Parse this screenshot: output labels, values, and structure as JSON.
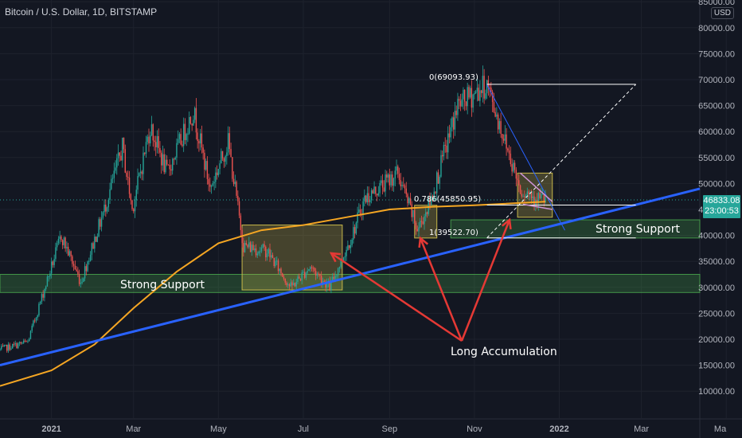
{
  "header": {
    "symbol": "Bitcoin / U.S. Dollar, 1D, BITSTAMP",
    "currency": "USD"
  },
  "last_price": {
    "value": "46833.08",
    "countdown": "23:00:53"
  },
  "annotations": {
    "support_left": "Strong Support",
    "support_right": "Strong Support",
    "accumulation": "Long Accumulation"
  },
  "fib_labels": {
    "f0": "0(69093.93)",
    "f786": "0.786(45850.95)",
    "f1": "1(39522.70)"
  },
  "colors": {
    "background": "#131722",
    "up": "#26a69a",
    "down": "#ef5350",
    "ma": "#f5a623",
    "trendline": "#2962ff",
    "arrow": "#e53935",
    "zone_green": "#4caf50",
    "zone_yellow": "#c8b84a",
    "wedge": "#ce93d8"
  },
  "chart_data": {
    "type": "candlestick",
    "title": "Bitcoin / U.S. Dollar, 1D, BITSTAMP",
    "x_ticks": [
      "2021",
      "Mar",
      "May",
      "Jul",
      "Sep",
      "Nov",
      "2022",
      "Mar",
      "Ma"
    ],
    "y_ticks": [
      "10000.00",
      "15000.00",
      "20000.00",
      "25000.00",
      "30000.00",
      "35000.00",
      "40000.00",
      "45000.00",
      "50000.00",
      "55000.00",
      "60000.00",
      "65000.00",
      "70000.00",
      "75000.00",
      "80000.00",
      "85000.00"
    ],
    "ylim": [
      5000,
      87000
    ],
    "price_path": [
      [
        "2020-11-25",
        18000
      ],
      [
        "2020-12-15",
        19500
      ],
      [
        "2021-01-08",
        40000
      ],
      [
        "2021-01-22",
        31000
      ],
      [
        "2021-02-08",
        45000
      ],
      [
        "2021-02-21",
        57000
      ],
      [
        "2021-02-28",
        45000
      ],
      [
        "2021-03-13",
        61000
      ],
      [
        "2021-03-25",
        52000
      ],
      [
        "2021-04-13",
        64000
      ],
      [
        "2021-04-25",
        49000
      ],
      [
        "2021-05-08",
        58000
      ],
      [
        "2021-05-19",
        38000
      ],
      [
        "2021-06-05",
        37000
      ],
      [
        "2021-06-22",
        30000
      ],
      [
        "2021-07-06",
        34000
      ],
      [
        "2021-07-20",
        30000
      ],
      [
        "2021-08-05",
        40000
      ],
      [
        "2021-08-14",
        47000
      ],
      [
        "2021-09-07",
        52000
      ],
      [
        "2021-09-21",
        41000
      ],
      [
        "2021-10-01",
        47000
      ],
      [
        "2021-10-20",
        65000
      ],
      [
        "2021-11-10",
        69000
      ],
      [
        "2021-11-28",
        54000
      ],
      [
        "2021-12-04",
        49000
      ],
      [
        "2021-12-15",
        47500
      ],
      [
        "2021-12-22",
        46833
      ]
    ],
    "ma_path": [
      [
        "2020-11-25",
        11000
      ],
      [
        "2021-01-01",
        14000
      ],
      [
        "2021-02-01",
        19000
      ],
      [
        "2021-03-01",
        26000
      ],
      [
        "2021-04-01",
        33000
      ],
      [
        "2021-05-01",
        38500
      ],
      [
        "2021-06-01",
        41000
      ],
      [
        "2021-07-01",
        42000
      ],
      [
        "2021-08-01",
        43500
      ],
      [
        "2021-09-01",
        45000
      ],
      [
        "2021-10-01",
        45500
      ],
      [
        "2021-11-01",
        45800
      ],
      [
        "2021-12-22",
        46500
      ]
    ],
    "last_price": 46833.08,
    "fibonacci": [
      {
        "level": "0",
        "price": 69093.93
      },
      {
        "level": "0.786",
        "price": 45850.95
      },
      {
        "level": "1",
        "price": 39522.7
      }
    ],
    "support_zones": [
      {
        "label": "Strong Support",
        "from": "2020-11-25",
        "to": "2022-04-12",
        "low": 29000,
        "high": 32500
      },
      {
        "label": "Strong Support",
        "from": "2021-10-15",
        "to": "2022-04-12",
        "low": 39500,
        "high": 43000
      }
    ],
    "accumulation_boxes": [
      {
        "from": "2021-05-18",
        "to": "2021-07-29",
        "low": 29500,
        "high": 42000
      },
      {
        "from": "2021-09-19",
        "to": "2021-10-05",
        "low": 39500,
        "high": 45800
      },
      {
        "from": "2021-12-02",
        "to": "2021-12-27",
        "low": 43500,
        "high": 52000
      }
    ],
    "trendline": {
      "from": [
        "2020-11-25",
        15000
      ],
      "to": [
        "2022-04-12",
        49000
      ]
    },
    "annotation": "Long Accumulation"
  }
}
